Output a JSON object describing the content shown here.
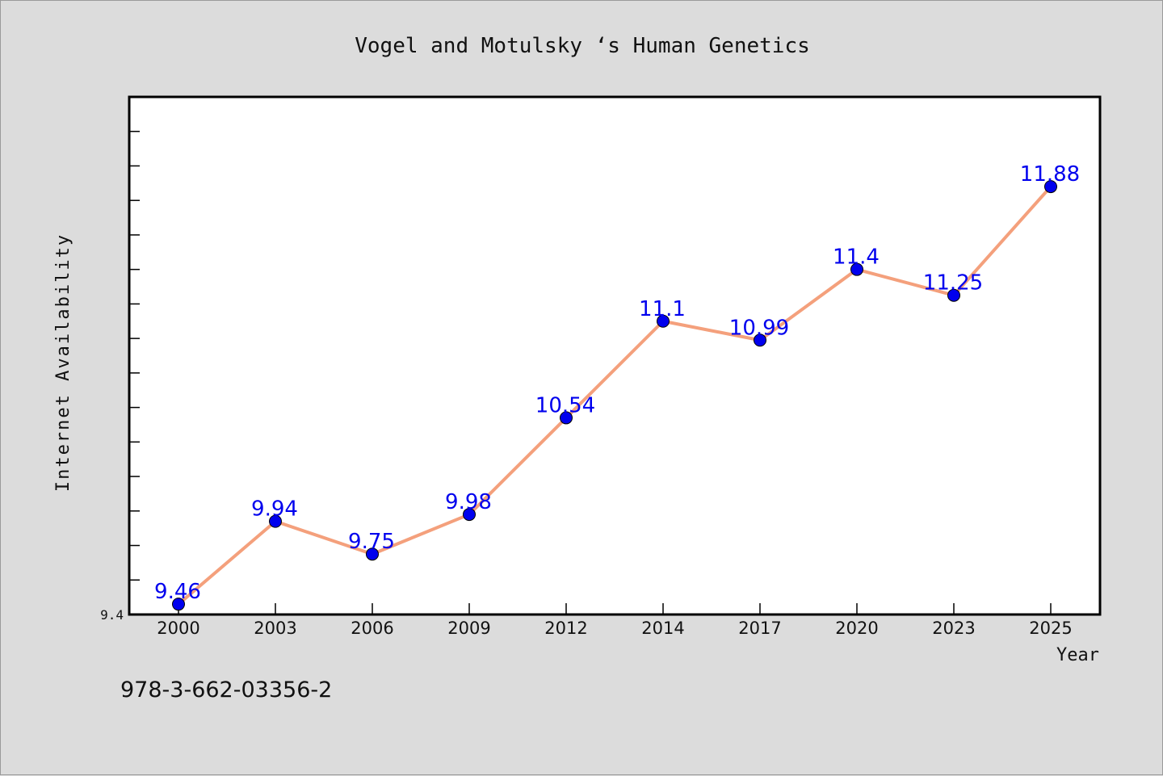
{
  "chart_data": {
    "type": "line",
    "title": "Vogel and Motulsky ‘s Human Genetics",
    "xlabel": "Year",
    "ylabel": "Internet Availability",
    "categories": [
      "2000",
      "2003",
      "2006",
      "2009",
      "2012",
      "2014",
      "2017",
      "2020",
      "2023",
      "2025"
    ],
    "series": [
      {
        "values": [
          9.46,
          9.94,
          9.75,
          9.98,
          10.54,
          11.1,
          10.99,
          11.4,
          11.25,
          11.88
        ],
        "labels": [
          "9.46",
          "9.94",
          "9.75",
          "9.98",
          "10.54",
          "11.1",
          "10.99",
          "11.4",
          "11.25",
          "11.88"
        ],
        "line_color": "#f4a07c",
        "marker_color": "#0000ee"
      }
    ],
    "ylim": [
      9.4,
      12.4
    ],
    "yticks_labeled": [
      "9.4"
    ],
    "grid": false,
    "legend": "none",
    "label_color": "#0000ee"
  },
  "footer": {
    "text": "978-3-662-03356-2"
  }
}
